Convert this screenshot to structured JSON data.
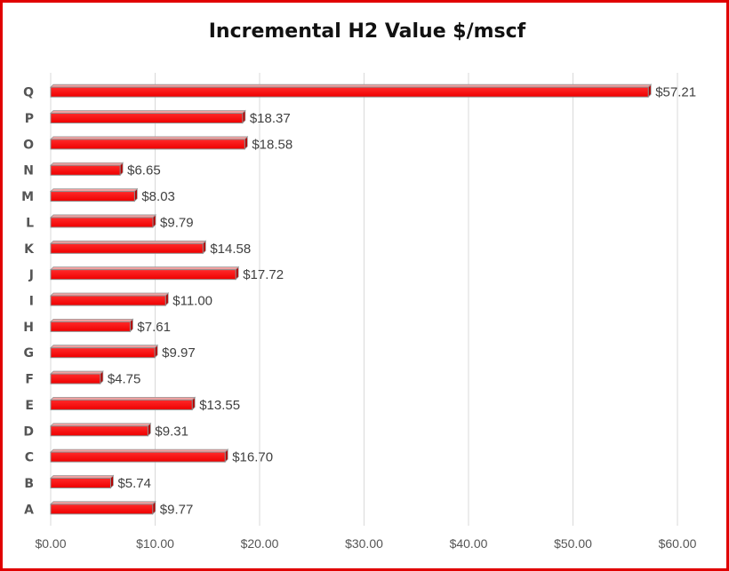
{
  "chart_data": {
    "type": "bar",
    "orientation": "horizontal",
    "title": "Incremental H2 Value $/mscf",
    "xlabel": "",
    "ylabel": "",
    "categories": [
      "A",
      "B",
      "C",
      "D",
      "E",
      "F",
      "G",
      "H",
      "I",
      "J",
      "K",
      "L",
      "M",
      "N",
      "O",
      "P",
      "Q"
    ],
    "values": [
      9.77,
      5.74,
      16.7,
      9.31,
      13.55,
      4.75,
      9.97,
      7.61,
      11.0,
      17.72,
      14.58,
      9.79,
      8.03,
      6.65,
      18.58,
      18.37,
      57.21
    ],
    "data_labels": [
      "$9.77",
      "$5.74",
      "$16.70",
      "$9.31",
      "$13.55",
      "$4.75",
      "$9.97",
      "$7.61",
      "$11.00",
      "$17.72",
      "$14.58",
      "$9.79",
      "$8.03",
      "$6.65",
      "$18.58",
      "$18.37",
      "$57.21"
    ],
    "xlim": [
      0,
      60
    ],
    "x_ticks": [
      0,
      10,
      20,
      30,
      40,
      50,
      60
    ],
    "x_tick_labels": [
      "$0.00",
      "$10.00",
      "$20.00",
      "$30.00",
      "$40.00",
      "$50.00",
      "$60.00"
    ],
    "grid": "vertical",
    "legend": "none",
    "bar_color": "#ff0000",
    "bar_edge_color": "#8b0000",
    "frame_color": "#e00000",
    "gridline_color": "#d9d9d9"
  }
}
